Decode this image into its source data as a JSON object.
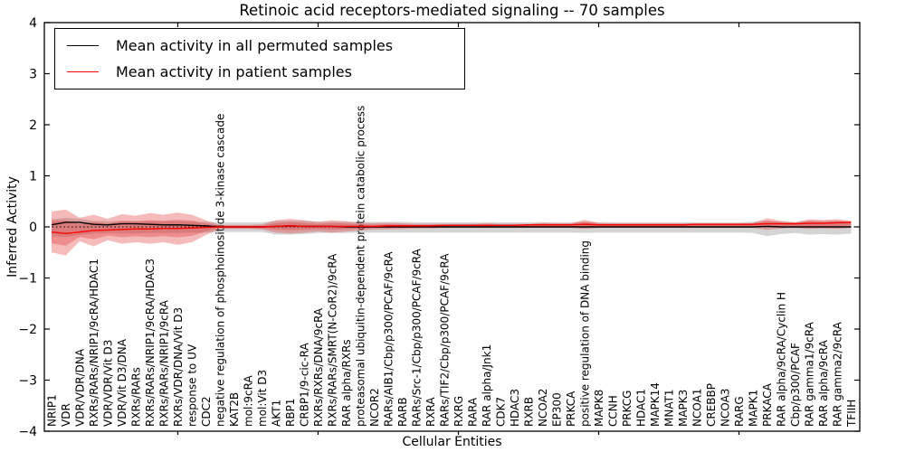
{
  "figure": {
    "title": "Retinoic acid receptors-mediated signaling -- 70 samples",
    "xlabel": "Cellular Entities",
    "ylabel": "Inferred Activity"
  },
  "legend": {
    "items": [
      {
        "label": "Mean activity in all permuted samples",
        "color": "#000000"
      },
      {
        "label": "Mean activity in patient samples",
        "color": "#ff0000"
      }
    ]
  },
  "chart_data": {
    "type": "line",
    "title": "Retinoic acid receptors-mediated signaling -- 70 samples",
    "xlabel": "Cellular Entities",
    "ylabel": "Inferred Activity",
    "ylim": [
      -4,
      4
    ],
    "yticks": [
      4,
      3,
      2,
      1,
      0,
      -1,
      -2,
      -3,
      -4
    ],
    "x_tick_positions": [
      9,
      19,
      29,
      39,
      49
    ],
    "grid": false,
    "legend_position": "upper left",
    "zero_line": {
      "color": "#000000",
      "style": "dotted"
    },
    "categories": [
      "NRIP1",
      "VDR",
      "VDR/VDR/DNA",
      "RXRs/RARs/NRIP1/9cRA/HDAC1",
      "VDR/VDR/Vit D3",
      "VDR/Vit D3/DNA",
      "RXRs/RARs",
      "RXRs/RARs/NRIP1/9cRA/HDAC3",
      "RXRs/RARs/NRIP1/9cRA",
      "RXRs/VDR/DNA/Vit D3",
      "response to UV",
      "CDC2",
      "negative regulation of phosphoinositide 3-kinase cascade",
      "KAT2B",
      "mol:9cRA",
      "mol:Vit D3",
      "AKT1",
      "RBP1",
      "CRBP1/9-cic-RA",
      "RXRs/RXRs/DNA/9cRA",
      "RXRs/RARs/SMRT(N-CoR2)/9cRA",
      "RAR alpha/RXRs",
      "proteasomal ubiquitin-dependent protein catabolic process",
      "NCOR2",
      "RARs/AIB1/Cbp/p300/PCAF/9cRA",
      "RARB",
      "RARs/Src-1/Cbp/p300/PCAF/9cRA",
      "RXRA",
      "RARs/TIF2/Cbp/p300/PCAF/9cRA",
      "RXRG",
      "RARA",
      "RAR alpha/Jnk1",
      "CDK7",
      "HDAC3",
      "RXRB",
      "NCOA2",
      "EP300",
      "PRKCA",
      "positive regulation of DNA binding",
      "MAPK8",
      "CCNH",
      "PRKCG",
      "HDAC1",
      "MAPK14",
      "MNAT1",
      "MAPK3",
      "NCOA1",
      "CREBBP",
      "NCOA3",
      "RARG",
      "MAPK1",
      "PRKACA",
      "RAR alpha/9cRA/Cyclin H",
      "Cbp/p300/PCAF",
      "RAR gamma1/9cRA",
      "RAR alpha/9cRA",
      "RAR gamma2/9cRA",
      "TFIIH"
    ],
    "series": [
      {
        "name": "Mean activity in all permuted samples",
        "color": "#000000",
        "band_color": "#787878",
        "band_opacity": 0.32,
        "values": [
          0.04,
          0.09,
          0.09,
          0.05,
          0.04,
          0.06,
          0.06,
          0.05,
          0.04,
          0.04,
          0.03,
          0.02,
          0,
          0,
          0,
          0,
          0.01,
          0.02,
          0.01,
          0.01,
          0.01,
          0,
          0,
          0,
          0,
          0,
          0,
          0,
          0,
          0,
          0,
          0,
          0,
          0,
          0,
          0,
          0,
          0,
          0,
          0,
          0,
          0,
          0,
          0,
          0,
          0,
          0,
          0,
          0,
          0,
          0,
          0.01,
          0,
          0,
          0,
          0,
          0,
          0
        ],
        "upper": [
          0.15,
          0.18,
          0.16,
          0.12,
          0.11,
          0.12,
          0.12,
          0.11,
          0.11,
          0.11,
          0.1,
          0.1,
          0.09,
          0.09,
          0.09,
          0.09,
          0.12,
          0.12,
          0.12,
          0.1,
          0.1,
          0.1,
          0.1,
          0.1,
          0.1,
          0.1,
          0.09,
          0.09,
          0.09,
          0.09,
          0.09,
          0.09,
          0.09,
          0.09,
          0.09,
          0.09,
          0.09,
          0.09,
          0.1,
          0.09,
          0.09,
          0.09,
          0.09,
          0.09,
          0.09,
          0.09,
          0.09,
          0.09,
          0.09,
          0.09,
          0.1,
          0.12,
          0.1,
          0.09,
          0.12,
          0.11,
          0.12,
          0.1
        ],
        "lower": [
          -0.18,
          -0.2,
          -0.16,
          -0.13,
          -0.12,
          -0.13,
          -0.13,
          -0.12,
          -0.12,
          -0.12,
          -0.11,
          -0.11,
          -0.1,
          -0.1,
          -0.1,
          -0.1,
          -0.15,
          -0.15,
          -0.14,
          -0.12,
          -0.12,
          -0.12,
          -0.11,
          -0.11,
          -0.11,
          -0.11,
          -0.11,
          -0.11,
          -0.11,
          -0.11,
          -0.11,
          -0.11,
          -0.11,
          -0.11,
          -0.11,
          -0.11,
          -0.11,
          -0.11,
          -0.12,
          -0.11,
          -0.11,
          -0.11,
          -0.11,
          -0.11,
          -0.11,
          -0.11,
          -0.11,
          -0.11,
          -0.11,
          -0.11,
          -0.12,
          -0.18,
          -0.14,
          -0.12,
          -0.15,
          -0.14,
          -0.15,
          -0.13
        ]
      },
      {
        "name": "Mean activity in patient samples",
        "color": "#ff0000",
        "band_color": "#e03030",
        "band_opacity": 0.33,
        "values": [
          -0.1,
          -0.13,
          -0.1,
          -0.07,
          -0.06,
          -0.05,
          -0.04,
          -0.04,
          -0.03,
          -0.03,
          -0.02,
          -0.01,
          0,
          0,
          0,
          0,
          0.01,
          0.02,
          0.01,
          0.01,
          0.01,
          0.01,
          0.01,
          0.01,
          0.02,
          0.02,
          0.02,
          0.02,
          0.03,
          0.03,
          0.03,
          0.03,
          0.03,
          0.03,
          0.04,
          0.04,
          0.04,
          0.04,
          0.05,
          0.04,
          0.04,
          0.04,
          0.04,
          0.04,
          0.04,
          0.04,
          0.05,
          0.05,
          0.05,
          0.05,
          0.05,
          0.06,
          0.06,
          0.06,
          0.07,
          0.07,
          0.08,
          0.09
        ],
        "upper": [
          0.3,
          0.34,
          0.18,
          0.24,
          0.16,
          0.25,
          0.22,
          0.27,
          0.24,
          0.28,
          0.24,
          0.13,
          0.04,
          0.04,
          0.04,
          0.05,
          0.13,
          0.16,
          0.13,
          0.1,
          0.13,
          0.11,
          0.08,
          0.07,
          0.08,
          0.07,
          0.06,
          0.06,
          0.06,
          0.06,
          0.06,
          0.07,
          0.06,
          0.06,
          0.06,
          0.08,
          0.07,
          0.07,
          0.14,
          0.08,
          0.07,
          0.07,
          0.07,
          0.07,
          0.07,
          0.07,
          0.07,
          0.07,
          0.07,
          0.07,
          0.08,
          0.17,
          0.12,
          0.09,
          0.15,
          0.14,
          0.15,
          0.12
        ],
        "lower": [
          -0.5,
          -0.56,
          -0.28,
          -0.38,
          -0.26,
          -0.33,
          -0.3,
          -0.33,
          -0.3,
          -0.35,
          -0.3,
          -0.16,
          -0.04,
          -0.04,
          -0.04,
          -0.05,
          -0.11,
          -0.13,
          -0.11,
          -0.09,
          -0.11,
          -0.09,
          -0.07,
          -0.05,
          -0.05,
          -0.04,
          -0.03,
          -0.03,
          -0.02,
          -0.02,
          -0.02,
          -0.02,
          -0.02,
          -0.02,
          -0.02,
          -0.02,
          -0.02,
          -0.02,
          -0.04,
          -0.02,
          -0.02,
          -0.02,
          -0.02,
          -0.02,
          -0.02,
          -0.02,
          -0.02,
          -0.02,
          -0.02,
          -0.02,
          -0.02,
          -0.06,
          -0.03,
          -0.02,
          -0.04,
          -0.03,
          -0.04,
          -0.02
        ]
      }
    ]
  }
}
